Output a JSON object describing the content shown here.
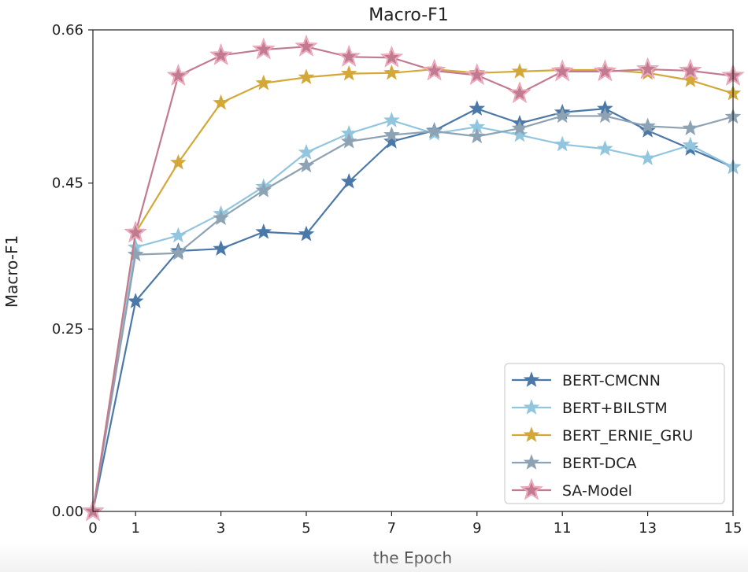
{
  "chart_data": {
    "type": "line",
    "title": "Macro-F1",
    "xlabel": "the Epoch",
    "ylabel": "Macro-F1",
    "xlim": [
      0,
      15
    ],
    "ylim": [
      0,
      0.66
    ],
    "x": [
      0,
      1,
      2,
      3,
      4,
      5,
      6,
      7,
      8,
      9,
      10,
      11,
      12,
      13,
      14,
      15
    ],
    "xticks": [
      0,
      1,
      3,
      5,
      7,
      9,
      11,
      13,
      15
    ],
    "xtick_labels": [
      "0",
      "1",
      "3",
      "5",
      "7",
      "9",
      "11",
      "13",
      "15"
    ],
    "yticks": [
      0.0,
      0.25,
      0.45,
      0.66
    ],
    "ytick_labels": [
      "0.00",
      "0.25",
      "0.45",
      "0.66"
    ],
    "legend_position": "lower-right",
    "series": [
      {
        "name": "BERT-CMCNN",
        "color": "#4a78a8",
        "values": [
          0.0,
          0.288,
          0.357,
          0.36,
          0.383,
          0.38,
          0.452,
          0.507,
          0.522,
          0.552,
          0.532,
          0.547,
          0.552,
          0.522,
          0.497,
          0.472
        ]
      },
      {
        "name": "BERT+BILSTM",
        "color": "#92c5de",
        "values": [
          0.0,
          0.362,
          0.378,
          0.408,
          0.445,
          0.492,
          0.518,
          0.536,
          0.518,
          0.527,
          0.516,
          0.503,
          0.497,
          0.484,
          0.502,
          0.472
        ]
      },
      {
        "name": "BERT_ERNIE_GRU",
        "color": "#d4a838",
        "values": [
          0.0,
          0.382,
          0.478,
          0.56,
          0.587,
          0.595,
          0.6,
          0.601,
          0.606,
          0.601,
          0.603,
          0.605,
          0.605,
          0.601,
          0.591,
          0.573
        ]
      },
      {
        "name": "BERT-DCA",
        "color": "#8da3b3",
        "values": [
          0.0,
          0.352,
          0.354,
          0.402,
          0.44,
          0.474,
          0.507,
          0.516,
          0.521,
          0.514,
          0.525,
          0.542,
          0.542,
          0.528,
          0.525,
          0.541
        ]
      },
      {
        "name": "SA-Model",
        "color": "#c27a90",
        "values": [
          0.0,
          0.382,
          0.597,
          0.625,
          0.633,
          0.637,
          0.623,
          0.622,
          0.604,
          0.598,
          0.573,
          0.603,
          0.603,
          0.606,
          0.604,
          0.597
        ]
      }
    ]
  }
}
